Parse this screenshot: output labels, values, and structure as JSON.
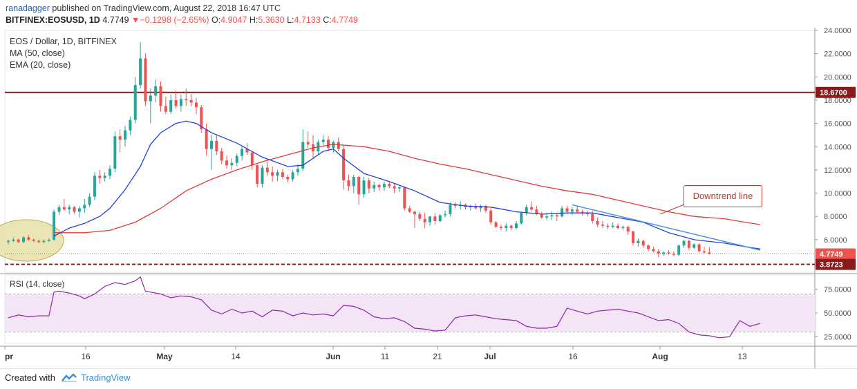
{
  "header": {
    "user": "ranadagger",
    "published": " published on TradingView.com, August 22, 2018 16:47 UTC",
    "symbol": "BITFINEX:EOSUSD, 1D",
    "last": "4.7749",
    "change_arrow": "▼",
    "change": "−0.1298 (−2.65%)",
    "o_label": "O:",
    "o": "4.9047",
    "h_label": "H:",
    "h": "5.3630",
    "l_label": "L:",
    "l": "4.7133",
    "c_label": "C:",
    "c": "4.7749"
  },
  "legend": {
    "title": "EOS / Dollar, 1D, BITFINEX",
    "ma": "MA (50, close)",
    "ema": "EMA (20, close)"
  },
  "annotation": "Downtrend line",
  "rsi_label": "RSI (14, close)",
  "footer": {
    "made": "Created with",
    "brand": "TradingView"
  },
  "colors": {
    "up": "#26a69a",
    "down": "#ef5350",
    "ma": "#e53935",
    "ema": "#1e40d8",
    "resistance": "#8b1a1a",
    "rsi": "#8e24aa",
    "rsi_band": "#f3e5f5"
  },
  "chart_data": [
    {
      "type": "candlestick",
      "title": "EOS / Dollar, 1D, BITFINEX",
      "ylim": [
        3.2,
        24.0
      ],
      "y_ticks": [
        "24.0000",
        "22.0000",
        "20.0000",
        "18.0000",
        "16.0000",
        "14.0000",
        "12.0000",
        "10.0000",
        "8.0000",
        "6.0000"
      ],
      "x_ticks": [
        "pr",
        "16",
        "May",
        "14",
        "Jun",
        "11",
        "21",
        "Jul",
        "16",
        "Aug",
        "13"
      ],
      "levels": [
        {
          "label": "18.6700",
          "value": 18.67,
          "style": "solid"
        },
        {
          "label": "4.7749",
          "value": 4.7749,
          "style": "dotted"
        },
        {
          "label": "3.8723",
          "value": 3.8723,
          "style": "dashed"
        }
      ],
      "candles": [
        [
          5.8,
          6.0,
          5.6,
          5.9
        ],
        [
          5.9,
          6.2,
          5.8,
          6.0
        ],
        [
          6.0,
          6.1,
          5.7,
          5.8
        ],
        [
          5.8,
          6.3,
          5.7,
          6.2
        ],
        [
          6.2,
          6.4,
          5.9,
          6.0
        ],
        [
          6.0,
          6.1,
          5.8,
          5.9
        ],
        [
          5.9,
          6.0,
          5.7,
          5.8
        ],
        [
          5.8,
          6.0,
          5.7,
          5.9
        ],
        [
          5.9,
          6.1,
          5.8,
          6.0
        ],
        [
          6.0,
          8.6,
          5.9,
          8.4
        ],
        [
          8.4,
          9.0,
          8.1,
          8.8
        ],
        [
          8.8,
          9.5,
          8.5,
          8.6
        ],
        [
          8.6,
          9.0,
          8.2,
          8.8
        ],
        [
          8.8,
          8.9,
          8.2,
          8.4
        ],
        [
          8.4,
          8.9,
          7.9,
          8.7
        ],
        [
          8.7,
          9.5,
          8.3,
          9.0
        ],
        [
          9.0,
          10.0,
          8.8,
          9.7
        ],
        [
          9.7,
          11.8,
          9.4,
          11.5
        ],
        [
          11.5,
          12.0,
          10.8,
          11.3
        ],
        [
          11.3,
          11.8,
          11.0,
          11.5
        ],
        [
          11.5,
          12.4,
          11.2,
          12.1
        ],
        [
          12.1,
          15.3,
          11.8,
          14.9
        ],
        [
          14.9,
          15.5,
          13.5,
          14.6
        ],
        [
          14.6,
          15.8,
          14.0,
          15.4
        ],
        [
          15.4,
          16.6,
          15.0,
          16.3
        ],
        [
          16.3,
          20.0,
          16.0,
          19.3
        ],
        [
          19.3,
          23.0,
          19.0,
          21.6
        ],
        [
          21.6,
          22.0,
          17.5,
          17.9
        ],
        [
          17.9,
          19.0,
          16.0,
          18.4
        ],
        [
          18.4,
          19.8,
          17.8,
          19.2
        ],
        [
          19.2,
          19.6,
          17.0,
          17.5
        ],
        [
          17.5,
          18.3,
          16.8,
          17.0
        ],
        [
          17.0,
          18.5,
          16.8,
          18.0
        ],
        [
          18.0,
          18.8,
          17.3,
          17.5
        ],
        [
          17.5,
          18.5,
          17.0,
          18.1
        ],
        [
          18.1,
          19.0,
          17.5,
          18.0
        ],
        [
          18.0,
          18.5,
          17.5,
          17.8
        ],
        [
          17.8,
          18.2,
          16.8,
          17.4
        ],
        [
          17.4,
          17.6,
          15.2,
          15.5
        ],
        [
          15.5,
          16.0,
          13.2,
          13.8
        ],
        [
          13.8,
          15.0,
          12.0,
          14.5
        ],
        [
          14.5,
          15.0,
          13.3,
          13.6
        ],
        [
          13.6,
          13.9,
          12.5,
          12.8
        ],
        [
          12.8,
          13.2,
          12.1,
          12.4
        ],
        [
          12.4,
          13.0,
          12.0,
          12.6
        ],
        [
          12.6,
          13.4,
          12.3,
          13.2
        ],
        [
          13.2,
          14.0,
          12.8,
          13.8
        ],
        [
          13.8,
          14.3,
          13.3,
          13.5
        ],
        [
          13.5,
          13.6,
          12.0,
          12.4
        ],
        [
          12.4,
          12.6,
          10.5,
          10.8
        ],
        [
          10.8,
          12.4,
          10.5,
          12.2
        ],
        [
          12.2,
          12.7,
          11.5,
          11.8
        ],
        [
          11.8,
          12.3,
          11.0,
          11.5
        ],
        [
          11.5,
          12.0,
          11.0,
          11.8
        ],
        [
          11.8,
          12.1,
          11.2,
          11.4
        ],
        [
          11.4,
          11.6,
          10.9,
          11.2
        ],
        [
          11.2,
          12.0,
          11.0,
          11.8
        ],
        [
          11.8,
          12.5,
          11.5,
          12.1
        ],
        [
          12.1,
          15.5,
          11.9,
          14.4
        ],
        [
          14.4,
          15.3,
          13.9,
          14.2
        ],
        [
          14.2,
          15.0,
          13.0,
          13.6
        ],
        [
          13.6,
          14.6,
          13.3,
          14.4
        ],
        [
          14.4,
          15.0,
          14.0,
          14.6
        ],
        [
          14.6,
          14.9,
          13.6,
          13.9
        ],
        [
          13.9,
          14.5,
          13.5,
          14.4
        ],
        [
          14.4,
          14.8,
          13.6,
          13.8
        ],
        [
          13.8,
          14.1,
          10.3,
          11.1
        ],
        [
          11.1,
          11.6,
          10.2,
          10.6
        ],
        [
          10.6,
          11.6,
          10.0,
          11.4
        ],
        [
          11.4,
          11.5,
          9.0,
          9.9
        ],
        [
          9.9,
          11.4,
          9.6,
          11.1
        ],
        [
          11.1,
          11.3,
          10.0,
          10.4
        ],
        [
          10.4,
          11.0,
          10.1,
          10.7
        ],
        [
          10.7,
          10.8,
          10.2,
          10.5
        ],
        [
          10.5,
          11.0,
          10.2,
          10.8
        ],
        [
          10.8,
          11.0,
          10.4,
          10.6
        ],
        [
          10.6,
          10.8,
          10.0,
          10.4
        ],
        [
          10.4,
          10.6,
          10.1,
          10.5
        ],
        [
          10.5,
          10.6,
          8.5,
          8.7
        ],
        [
          8.7,
          8.9,
          8.3,
          8.4
        ],
        [
          8.4,
          8.5,
          7.0,
          8.2
        ],
        [
          8.2,
          8.4,
          7.6,
          7.8
        ],
        [
          7.8,
          8.3,
          7.0,
          7.5
        ],
        [
          7.5,
          8.0,
          7.2,
          8.0
        ],
        [
          8.0,
          8.3,
          7.3,
          7.6
        ],
        [
          7.6,
          8.2,
          7.5,
          8.1
        ],
        [
          8.1,
          8.5,
          7.9,
          8.2
        ],
        [
          8.2,
          9.2,
          8.0,
          9.0
        ],
        [
          9.0,
          9.2,
          8.7,
          8.9
        ],
        [
          8.9,
          9.3,
          8.6,
          9.0
        ],
        [
          9.0,
          9.1,
          8.6,
          8.8
        ],
        [
          8.8,
          9.0,
          8.5,
          8.9
        ],
        [
          8.9,
          9.1,
          8.6,
          8.7
        ],
        [
          8.7,
          9.0,
          8.4,
          8.9
        ],
        [
          8.9,
          9.0,
          8.3,
          8.5
        ],
        [
          8.5,
          8.7,
          7.3,
          7.5
        ],
        [
          7.5,
          7.6,
          7.0,
          7.1
        ],
        [
          7.1,
          7.3,
          6.8,
          7.0
        ],
        [
          7.0,
          7.4,
          6.7,
          7.2
        ],
        [
          7.2,
          7.3,
          6.8,
          7.0
        ],
        [
          7.0,
          7.6,
          6.9,
          7.4
        ],
        [
          7.4,
          8.4,
          7.3,
          8.3
        ],
        [
          8.3,
          9.0,
          8.1,
          8.8
        ],
        [
          8.8,
          9.3,
          8.4,
          8.6
        ],
        [
          8.6,
          8.9,
          8.1,
          8.2
        ],
        [
          8.2,
          8.4,
          7.8,
          7.9
        ],
        [
          7.9,
          8.3,
          7.7,
          8.0
        ],
        [
          8.0,
          8.4,
          7.7,
          8.1
        ],
        [
          8.1,
          8.3,
          7.6,
          8.0
        ],
        [
          8.0,
          8.9,
          7.9,
          8.7
        ],
        [
          8.7,
          8.9,
          8.2,
          8.4
        ],
        [
          8.4,
          8.8,
          8.1,
          8.6
        ],
        [
          8.6,
          8.9,
          8.3,
          8.4
        ],
        [
          8.4,
          8.6,
          8.1,
          8.3
        ],
        [
          8.3,
          8.5,
          8.0,
          8.2
        ],
        [
          8.2,
          8.5,
          7.4,
          7.6
        ],
        [
          7.6,
          7.9,
          7.1,
          7.3
        ],
        [
          7.3,
          7.6,
          7.0,
          7.2
        ],
        [
          7.2,
          7.4,
          6.9,
          7.1
        ],
        [
          7.1,
          7.5,
          7.0,
          7.2
        ],
        [
          7.2,
          7.4,
          6.9,
          7.0
        ],
        [
          7.0,
          7.2,
          6.8,
          7.1
        ],
        [
          7.1,
          7.2,
          6.4,
          6.7
        ],
        [
          6.7,
          6.8,
          5.5,
          5.7
        ],
        [
          5.7,
          6.1,
          5.4,
          5.9
        ],
        [
          5.9,
          6.0,
          5.3,
          5.5
        ],
        [
          5.5,
          5.6,
          5.0,
          5.2
        ],
        [
          5.2,
          5.4,
          4.9,
          5.0
        ],
        [
          5.0,
          5.2,
          4.5,
          4.8
        ],
        [
          4.8,
          5.0,
          4.6,
          4.9
        ],
        [
          4.9,
          5.1,
          4.7,
          4.8
        ],
        [
          4.8,
          5.0,
          4.6,
          4.7
        ],
        [
          4.7,
          5.6,
          4.6,
          5.5
        ],
        [
          5.5,
          6.0,
          5.3,
          5.9
        ],
        [
          5.9,
          6.0,
          5.1,
          5.3
        ],
        [
          5.3,
          5.7,
          5.2,
          5.6
        ],
        [
          5.6,
          5.7,
          4.9,
          5.0
        ],
        [
          5.0,
          5.4,
          4.8,
          4.9
        ],
        [
          4.9047,
          5.363,
          4.7133,
          4.7749
        ]
      ],
      "ma50": [
        [
          9,
          6.6
        ],
        [
          15,
          6.6
        ],
        [
          20,
          6.8
        ],
        [
          25,
          7.5
        ],
        [
          30,
          8.7
        ],
        [
          35,
          10.2
        ],
        [
          40,
          11.2
        ],
        [
          45,
          12.0
        ],
        [
          50,
          12.7
        ],
        [
          55,
          13.3
        ],
        [
          60,
          13.9
        ],
        [
          64,
          14.2
        ],
        [
          70,
          14.0
        ],
        [
          75,
          13.6
        ],
        [
          80,
          13.0
        ],
        [
          85,
          12.5
        ],
        [
          90,
          12.1
        ],
        [
          95,
          11.6
        ],
        [
          100,
          11.1
        ],
        [
          105,
          10.6
        ],
        [
          110,
          10.2
        ],
        [
          115,
          9.9
        ],
        [
          120,
          9.4
        ],
        [
          125,
          8.9
        ],
        [
          130,
          8.4
        ],
        [
          135,
          8.0
        ],
        [
          141,
          7.8
        ],
        [
          145,
          7.5
        ],
        [
          148,
          7.3
        ]
      ],
      "ema20": [
        [
          9,
          6.3
        ],
        [
          12,
          7.0
        ],
        [
          15,
          7.4
        ],
        [
          18,
          8.0
        ],
        [
          20,
          8.7
        ],
        [
          23,
          10.3
        ],
        [
          26,
          12.3
        ],
        [
          28,
          14.2
        ],
        [
          30,
          15.2
        ],
        [
          33,
          16.0
        ],
        [
          35,
          16.2
        ],
        [
          37,
          16.0
        ],
        [
          40,
          15.2
        ],
        [
          45,
          14.3
        ],
        [
          50,
          13.1
        ],
        [
          55,
          12.3
        ],
        [
          58,
          12.4
        ],
        [
          62,
          13.6
        ],
        [
          64,
          13.8
        ],
        [
          66,
          13.0
        ],
        [
          70,
          11.7
        ],
        [
          75,
          11.0
        ],
        [
          80,
          10.2
        ],
        [
          85,
          9.2
        ],
        [
          90,
          8.9
        ],
        [
          95,
          8.8
        ],
        [
          100,
          8.4
        ],
        [
          105,
          8.2
        ],
        [
          110,
          8.3
        ],
        [
          115,
          8.3
        ],
        [
          120,
          7.9
        ],
        [
          125,
          7.5
        ],
        [
          130,
          6.6
        ],
        [
          135,
          6.0
        ],
        [
          141,
          5.7
        ],
        [
          145,
          5.4
        ],
        [
          148,
          5.2
        ]
      ],
      "trendline": [
        [
          111,
          9.0
        ],
        [
          148,
          5.1
        ]
      ]
    },
    {
      "type": "line",
      "title": "RSI (14, close)",
      "ylim": [
        18,
        90
      ],
      "y_ticks": [
        "75.0000",
        "50.0000",
        "25.0000"
      ],
      "band": [
        30,
        70
      ],
      "x": [
        0,
        2,
        4,
        6,
        8,
        9,
        10,
        12,
        14,
        15,
        17,
        19,
        21,
        23,
        25,
        26,
        27,
        28,
        30,
        32,
        34,
        36,
        38,
        40,
        42,
        44,
        46,
        48,
        50,
        52,
        54,
        56,
        58,
        60,
        62,
        64,
        66,
        68,
        70,
        72,
        74,
        76,
        78,
        80,
        82,
        84,
        86,
        88,
        90,
        92,
        94,
        96,
        98,
        100,
        102,
        104,
        106,
        108,
        110,
        112,
        114,
        116,
        118,
        120,
        122,
        124,
        126,
        128,
        130,
        132,
        134,
        136,
        138,
        140,
        142,
        144,
        146,
        148
      ],
      "values": [
        45,
        48,
        46,
        47,
        47,
        72,
        73,
        71,
        68,
        65,
        70,
        78,
        82,
        80,
        84,
        88,
        73,
        72,
        70,
        66,
        68,
        67,
        64,
        53,
        49,
        54,
        50,
        52,
        46,
        53,
        52,
        47,
        50,
        48,
        49,
        47,
        58,
        57,
        53,
        46,
        44,
        45,
        41,
        34,
        33,
        31,
        32,
        45,
        47,
        48,
        46,
        44,
        43,
        42,
        36,
        34,
        34,
        36,
        55,
        52,
        49,
        52,
        53,
        54,
        52,
        50,
        46,
        42,
        43,
        39,
        30,
        27,
        26,
        24,
        25,
        42,
        36,
        39
      ]
    }
  ]
}
